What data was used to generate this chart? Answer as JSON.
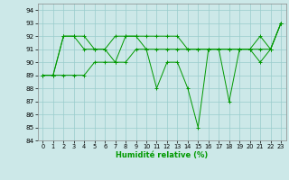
{
  "xlabel": "Humidité relative (%)",
  "xlim": [
    -0.5,
    23.5
  ],
  "ylim": [
    84,
    94.5
  ],
  "yticks": [
    84,
    85,
    86,
    87,
    88,
    89,
    90,
    91,
    92,
    93,
    94
  ],
  "xticks": [
    0,
    1,
    2,
    3,
    4,
    5,
    6,
    7,
    8,
    9,
    10,
    11,
    12,
    13,
    14,
    15,
    16,
    17,
    18,
    19,
    20,
    21,
    22,
    23
  ],
  "background_color": "#cce8e8",
  "grid_color": "#99cccc",
  "line_color": "#009900",
  "series": [
    [
      89,
      89,
      92,
      92,
      91,
      91,
      91,
      90,
      92,
      92,
      91,
      88,
      90,
      90,
      88,
      85,
      91,
      91,
      87,
      91,
      91,
      90,
      91,
      93
    ],
    [
      89,
      89,
      89,
      89,
      89,
      90,
      90,
      90,
      90,
      91,
      91,
      91,
      91,
      91,
      91,
      91,
      91,
      91,
      91,
      91,
      91,
      91,
      91,
      93
    ],
    [
      89,
      89,
      92,
      92,
      92,
      91,
      91,
      92,
      92,
      92,
      92,
      92,
      92,
      92,
      91,
      91,
      91,
      91,
      91,
      91,
      91,
      92,
      91,
      93
    ]
  ]
}
